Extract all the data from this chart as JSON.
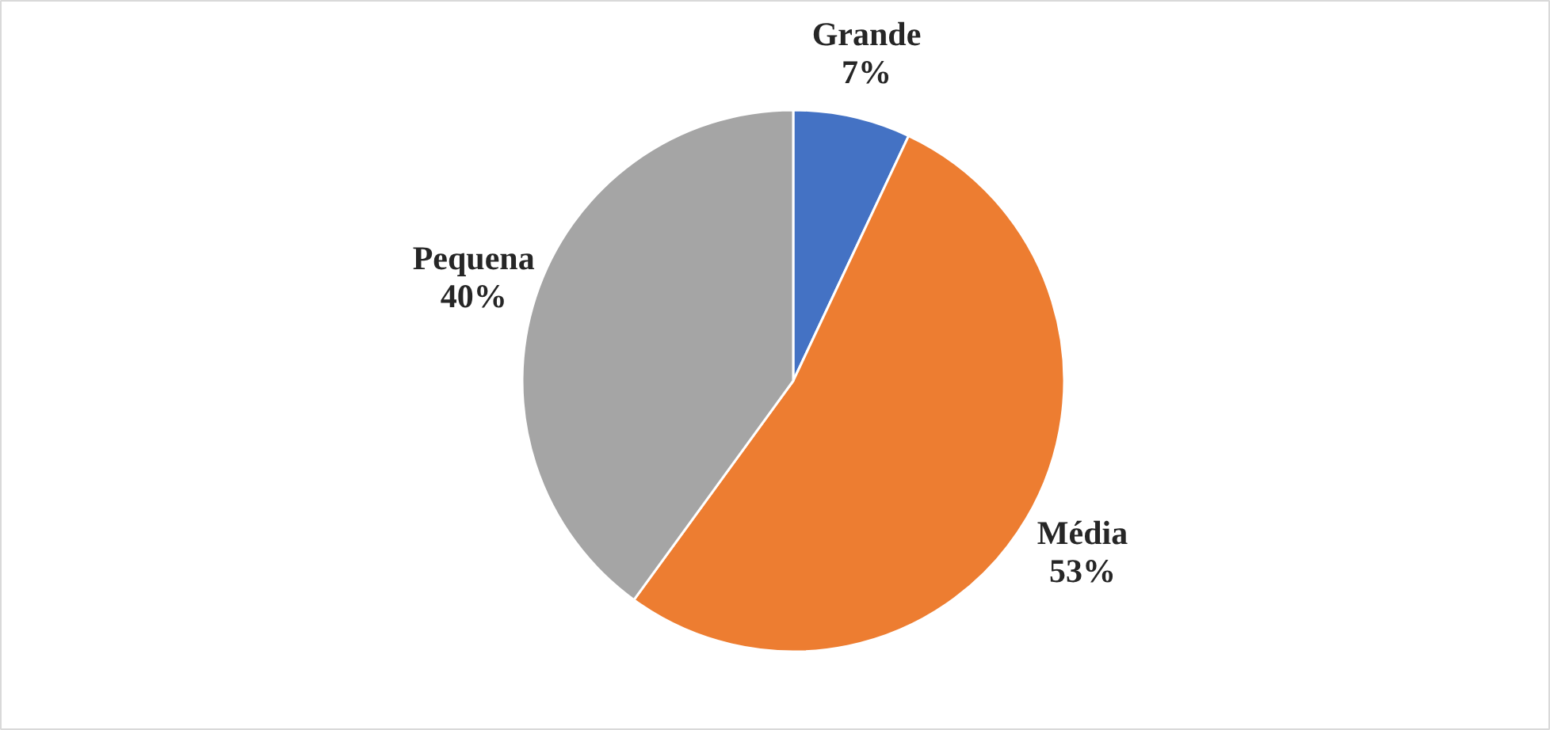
{
  "chart_data": {
    "type": "pie",
    "categories": [
      "Grande",
      "Média",
      "Pequena"
    ],
    "values": [
      7,
      53,
      40
    ],
    "colors": [
      "#4472c4",
      "#ed7d31",
      "#a5a5a5"
    ],
    "value_labels": [
      "7%",
      "53%",
      "40%"
    ]
  }
}
